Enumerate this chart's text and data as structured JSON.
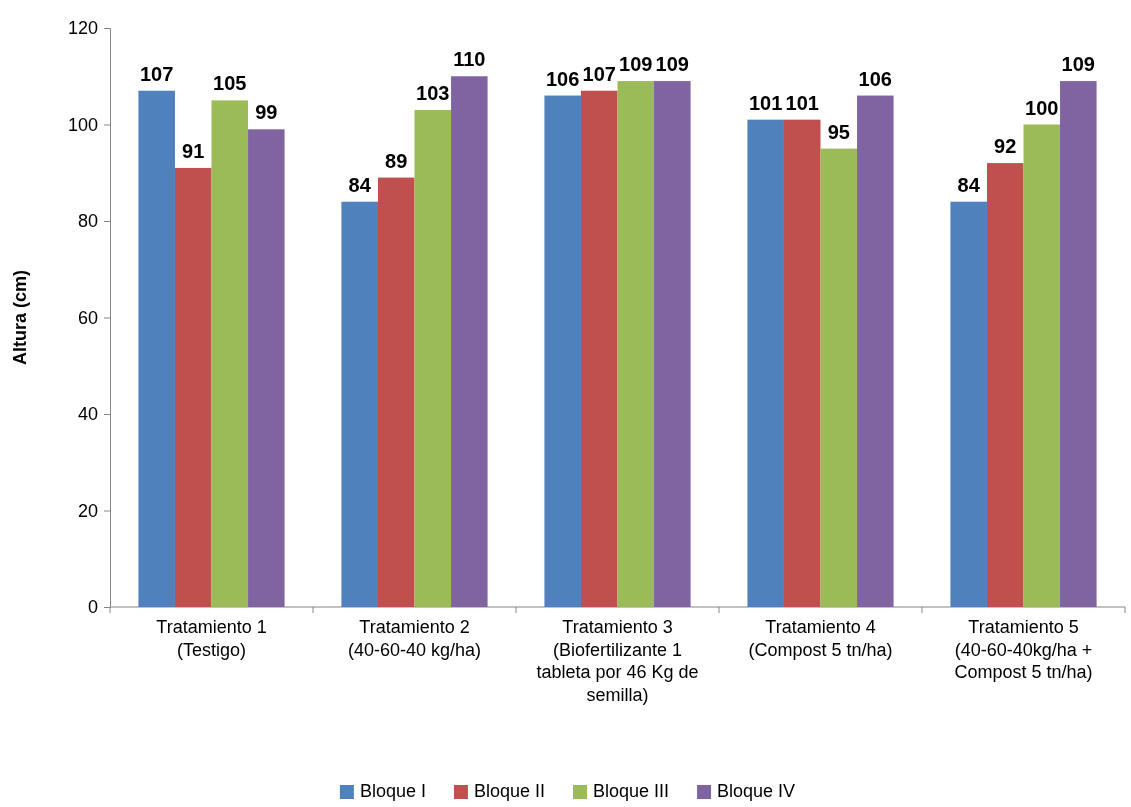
{
  "chart_data": {
    "type": "bar",
    "ylabel": "Altura (cm)",
    "categories": [
      "Tratamiento 1 (Testigo)",
      "Tratamiento 2 (40-60-40 kg/ha)",
      "Tratamiento 3 (Biofertilizante 1 tableta por 46 Kg de semilla)",
      "Tratamiento 4 (Compost 5 tn/ha)",
      "Tratamiento 5 (40-60-40kg/ha + Compost 5 tn/ha)"
    ],
    "series": [
      {
        "name": "Bloque I",
        "color": "#4f81bd",
        "values": [
          107,
          84,
          106,
          101,
          84
        ]
      },
      {
        "name": "Bloque II",
        "color": "#c0504d",
        "values": [
          91,
          89,
          107,
          101,
          92
        ]
      },
      {
        "name": "Bloque III",
        "color": "#9bbb59",
        "values": [
          105,
          103,
          109,
          95,
          100
        ]
      },
      {
        "name": "Bloque IV",
        "color": "#8064a2",
        "values": [
          99,
          110,
          109,
          106,
          109
        ]
      }
    ],
    "ylim": [
      0,
      120
    ],
    "yticks": [
      0,
      20,
      40,
      60,
      80,
      100,
      120
    ],
    "grid": false,
    "legend": "bottom",
    "data_labels": true
  }
}
